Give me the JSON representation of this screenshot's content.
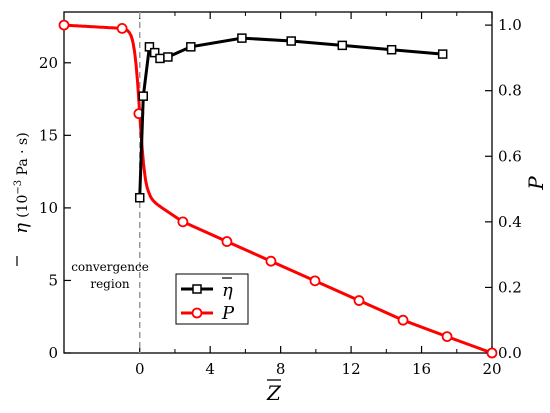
{
  "chart_data": {
    "type": "line",
    "xlabel": "Z",
    "ylabel_left_symbol": "η",
    "ylabel_left_unit": "(10",
    "ylabel_left_exp": "−3",
    "ylabel_left_unit_tail": " Pa · s)",
    "ylabel_right": "P",
    "annotation": [
      "convergence",
      "region"
    ],
    "xlim": [
      -4.3,
      20
    ],
    "ylim_left": [
      0,
      23.5
    ],
    "ylim_right": [
      0,
      1.04
    ],
    "x_ticks": [
      0,
      4,
      8,
      12,
      16,
      20
    ],
    "x_tick_labels": [
      "0",
      "4",
      "8",
      "12",
      "16",
      "20"
    ],
    "y_left_ticks": [
      0,
      5,
      10,
      15,
      20
    ],
    "y_left_tick_labels": [
      "0",
      "5",
      "10",
      "15",
      "20"
    ],
    "y_right_ticks": [
      0,
      0.2,
      0.4,
      0.6,
      0.8,
      1.0
    ],
    "y_right_tick_labels": [
      "0.0",
      "0.2",
      "0.4",
      "0.6",
      "0.8",
      "1.0"
    ],
    "vline_x": 0,
    "series": [
      {
        "name": "η",
        "axis": "left",
        "color": "#000000",
        "marker": "square",
        "x": [
          0.0,
          0.2,
          0.55,
          0.85,
          1.15,
          1.6,
          2.9,
          5.8,
          8.6,
          11.5,
          14.3,
          17.2
        ],
        "y": [
          10.7,
          17.7,
          21.1,
          20.7,
          20.3,
          20.4,
          21.1,
          21.7,
          21.5,
          21.2,
          20.9,
          20.6
        ]
      },
      {
        "name": "P",
        "axis": "right",
        "color": "#ff0000",
        "marker": "circle",
        "x": [
          -4.3,
          -1.0,
          -0.05,
          2.45,
          4.95,
          7.45,
          9.95,
          12.45,
          14.95,
          17.45,
          20.0
        ],
        "y": [
          1.0,
          0.99,
          0.73,
          0.4,
          0.34,
          0.28,
          0.22,
          0.16,
          0.1,
          0.05,
          0.0
        ]
      }
    ],
    "legend": {
      "position": "bottom-center"
    }
  }
}
